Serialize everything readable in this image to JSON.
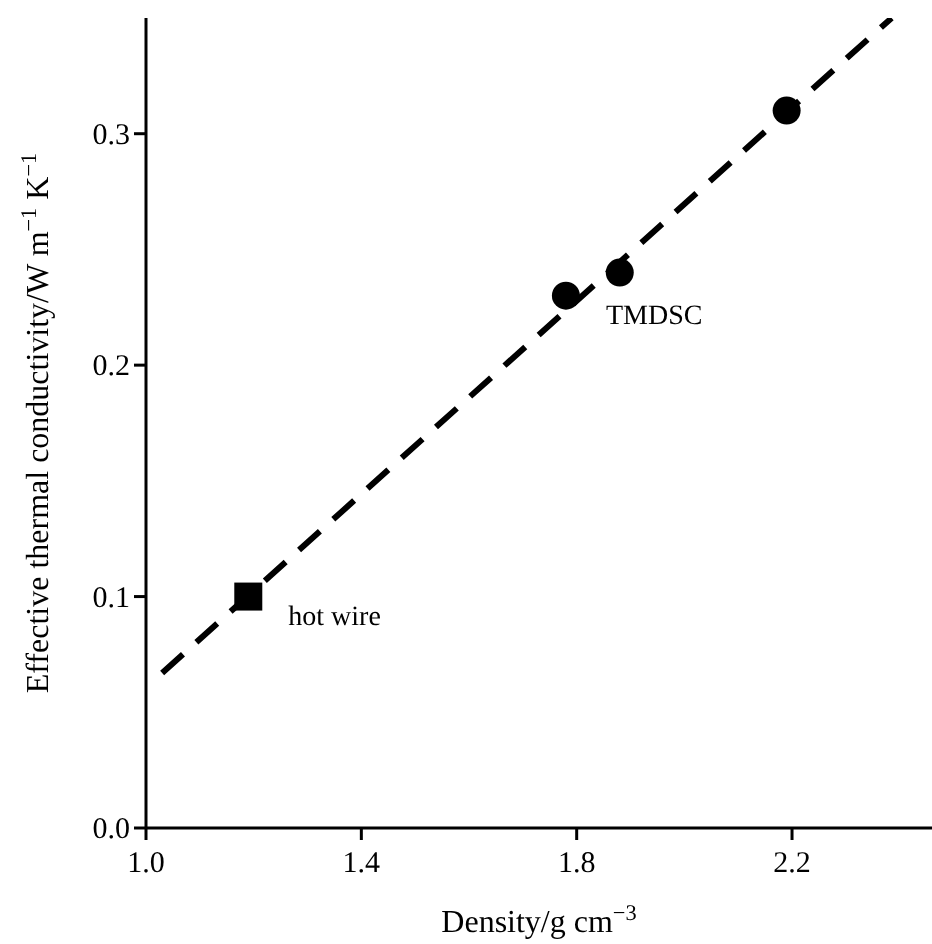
{
  "chart_data": {
    "type": "scatter",
    "xlabel": "Density/g cm$^{−3}$",
    "ylabel": "Effective thermal conductivity/W m$^{−1}$ K$^{−1}$",
    "xlim": [
      1.0,
      2.46
    ],
    "ylim": [
      0,
      0.35
    ],
    "xticks": [
      {
        "value": 1,
        "label": "1.0"
      },
      1.4,
      1.8,
      2.2
    ],
    "yticks": [
      {
        "value": 0,
        "label": "0.0"
      },
      0.1,
      0.2,
      0.3
    ],
    "grid": false,
    "series": [
      {
        "color": "#000000",
        "marker": "square",
        "x": [
          1.19
        ],
        "values": [
          0.1
        ]
      },
      {
        "color": "#000000",
        "marker": "circle",
        "x": [
          1.78,
          1.88,
          2.19
        ],
        "values": [
          0.23,
          0.24,
          0.31
        ]
      },
      {
        "type": "line",
        "color": "#000000",
        "line_style": "dashed",
        "x": [
          1.03,
          2.385
        ],
        "values": [
          0.067,
          0.35
        ]
      }
    ],
    "annotations": [
      {
        "text": "hot wire",
        "x": 1.19,
        "y": 0.1
      },
      {
        "text": "TMDSC",
        "x": 1.78,
        "y": 0.23
      }
    ]
  }
}
